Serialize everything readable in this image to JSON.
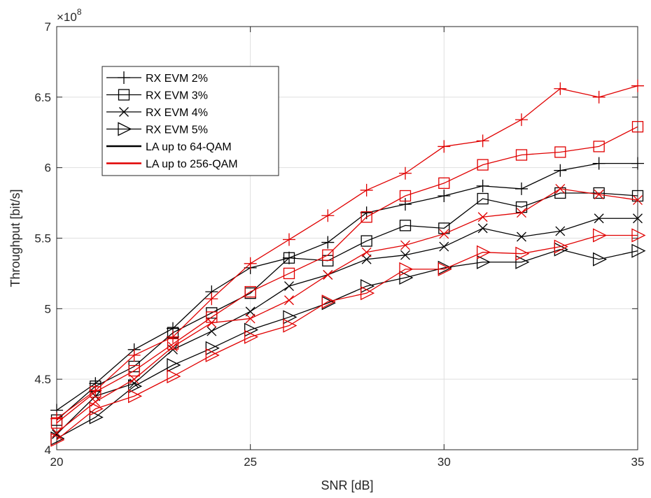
{
  "chart_data": {
    "type": "line",
    "title": "",
    "xlabel": "SNR [dB]",
    "ylabel": "Throughput [bit/s]",
    "xlim": [
      20,
      35
    ],
    "ylim": [
      4,
      7
    ],
    "y_multiplier_base": "×10",
    "y_multiplier_exp": "8",
    "x_ticks": [
      20,
      25,
      30,
      35
    ],
    "y_ticks": [
      4,
      4.5,
      5,
      5.5,
      6,
      6.5,
      7
    ],
    "y_tick_labels": [
      "4",
      "4.5",
      "5",
      "5.5",
      "6",
      "6.5",
      "7"
    ],
    "grid": true,
    "legend_position": "top-left",
    "x": [
      20,
      21,
      22,
      23,
      24,
      25,
      26,
      27,
      28,
      29,
      30,
      31,
      32,
      33,
      34,
      35
    ],
    "series": [
      {
        "name": "",
        "marker": "plus",
        "color": "#000000",
        "values": [
          4.28,
          4.47,
          4.71,
          4.86,
          5.12,
          5.29,
          5.36,
          5.47,
          5.68,
          5.74,
          5.8,
          5.87,
          5.85,
          5.98,
          6.03,
          6.03
        ]
      },
      {
        "name": "",
        "marker": "square",
        "color": "#000000",
        "values": [
          4.21,
          4.45,
          4.59,
          4.83,
          4.97,
          5.11,
          5.36,
          5.34,
          5.48,
          5.59,
          5.57,
          5.78,
          5.72,
          5.82,
          5.82,
          5.8
        ]
      },
      {
        "name": "",
        "marker": "x",
        "color": "#000000",
        "values": [
          4.11,
          4.38,
          4.47,
          4.71,
          4.84,
          4.98,
          5.16,
          5.24,
          5.35,
          5.38,
          5.44,
          5.57,
          5.51,
          5.55,
          5.64,
          5.64
        ]
      },
      {
        "name": "",
        "marker": "triangle-right",
        "color": "#000000",
        "values": [
          4.08,
          4.23,
          4.45,
          4.6,
          4.72,
          4.85,
          4.94,
          5.04,
          5.16,
          5.22,
          5.29,
          5.33,
          5.33,
          5.42,
          5.35,
          5.41
        ]
      },
      {
        "name": "",
        "marker": "plus",
        "color": "#e00000",
        "values": [
          4.22,
          4.42,
          4.67,
          4.8,
          5.07,
          5.32,
          5.49,
          5.66,
          5.84,
          5.96,
          6.15,
          6.19,
          6.34,
          6.56,
          6.5,
          6.58
        ]
      },
      {
        "name": "",
        "marker": "square",
        "color": "#e00000",
        "values": [
          4.19,
          4.41,
          4.56,
          4.75,
          4.94,
          5.12,
          5.25,
          5.38,
          5.65,
          5.8,
          5.89,
          6.02,
          6.09,
          6.11,
          6.15,
          6.29
        ]
      },
      {
        "name": "",
        "marker": "x",
        "color": "#e00000",
        "values": [
          4.12,
          4.34,
          4.5,
          4.73,
          4.9,
          4.93,
          5.06,
          5.24,
          5.4,
          5.45,
          5.53,
          5.65,
          5.68,
          5.85,
          5.81,
          5.77
        ]
      },
      {
        "name": "",
        "marker": "triangle-right",
        "color": "#e00000",
        "values": [
          4.07,
          4.29,
          4.38,
          4.52,
          4.67,
          4.8,
          4.88,
          5.05,
          5.11,
          5.28,
          5.28,
          5.4,
          5.39,
          5.44,
          5.52,
          5.52
        ]
      }
    ],
    "legend": [
      {
        "label": "RX EVM 2%",
        "marker": "plus",
        "color": "#000000"
      },
      {
        "label": "RX EVM 3%",
        "marker": "square",
        "color": "#000000"
      },
      {
        "label": "RX EVM 4%",
        "marker": "x",
        "color": "#000000"
      },
      {
        "label": "RX EVM 5%",
        "marker": "triangle-right",
        "color": "#000000"
      },
      {
        "label": "LA up to 64-QAM",
        "marker": "none",
        "color": "#000000"
      },
      {
        "label": "LA up to 256-QAM",
        "marker": "none",
        "color": "#e00000"
      }
    ]
  }
}
